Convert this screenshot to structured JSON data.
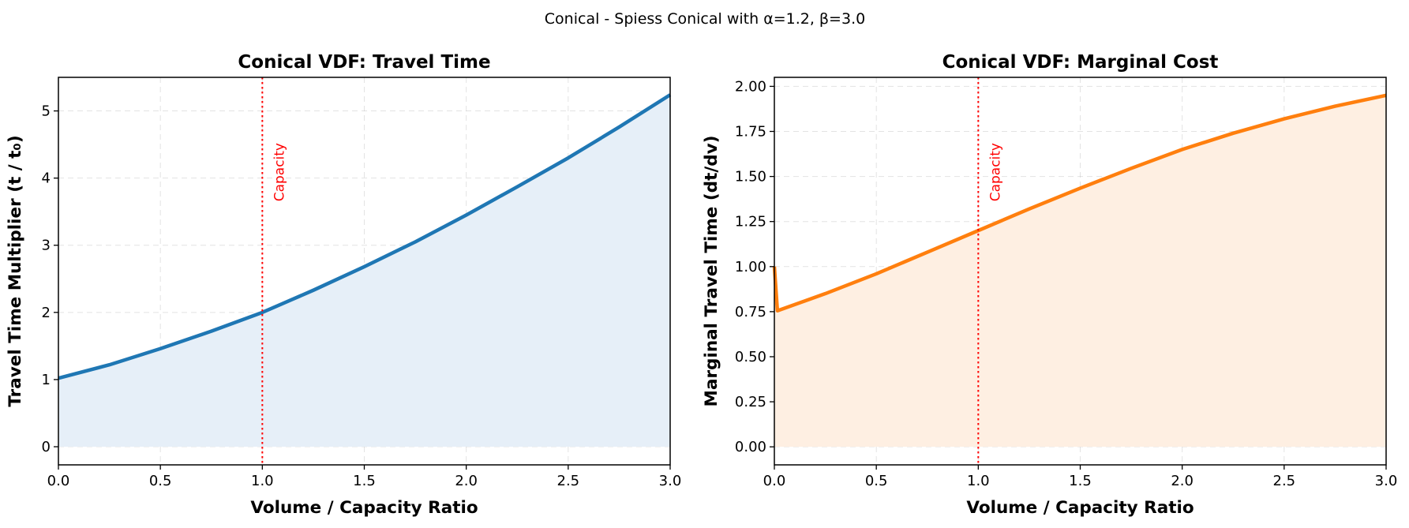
{
  "suptitle": "Conical - Spiess Conical with α=1.2, β=3.0",
  "chart_data": [
    {
      "type": "area",
      "title": "Conical VDF: Travel Time",
      "xlabel": "Volume / Capacity Ratio",
      "ylabel": "Travel Time Multiplier (t / t₀)",
      "xlim": [
        0,
        3.0
      ],
      "ylim": [
        -0.27,
        5.5
      ],
      "xticks": [
        0,
        0.5,
        1.0,
        1.5,
        2.0,
        2.5,
        3.0
      ],
      "xtick_labels": [
        "0.0",
        "0.5",
        "1.0",
        "1.5",
        "2.0",
        "2.5",
        "3.0"
      ],
      "yticks": [
        0,
        1,
        2,
        3,
        4,
        5
      ],
      "ytick_labels": [
        "0",
        "1",
        "2",
        "3",
        "4",
        "5"
      ],
      "grid": true,
      "capacity_line": {
        "x": 1.0,
        "label": "Capacity",
        "color": "#ff0000"
      },
      "series": [
        {
          "name": "Travel Time",
          "color": "#1f77b4",
          "fill": "#e6eff8",
          "x": [
            0,
            0.25,
            0.5,
            0.75,
            1.0,
            1.25,
            1.5,
            1.75,
            2.0,
            2.25,
            2.5,
            2.75,
            3.0
          ],
          "values": [
            1.02,
            1.22,
            1.46,
            1.72,
            2.0,
            2.33,
            2.68,
            3.05,
            3.45,
            3.87,
            4.3,
            4.76,
            5.24
          ]
        }
      ]
    },
    {
      "type": "area",
      "title": "Conical VDF: Marginal Cost",
      "xlabel": "Volume / Capacity Ratio",
      "ylabel": "Marginal Travel Time (dt/dv)",
      "xlim": [
        0,
        3.0
      ],
      "ylim": [
        -0.1,
        2.05
      ],
      "xticks": [
        0,
        0.5,
        1.0,
        1.5,
        2.0,
        2.5,
        3.0
      ],
      "xtick_labels": [
        "0.0",
        "0.5",
        "1.0",
        "1.5",
        "2.0",
        "2.5",
        "3.0"
      ],
      "yticks": [
        0,
        0.25,
        0.5,
        0.75,
        1.0,
        1.25,
        1.5,
        1.75,
        2.0
      ],
      "ytick_labels": [
        "0.00",
        "0.25",
        "0.50",
        "0.75",
        "1.00",
        "1.25",
        "1.50",
        "1.75",
        "2.00"
      ],
      "grid": true,
      "capacity_line": {
        "x": 1.0,
        "label": "Capacity",
        "color": "#ff0000"
      },
      "series": [
        {
          "name": "Marginal Cost",
          "color": "#ff7f0e",
          "fill": "#feefe2",
          "x": [
            0,
            0.015,
            0.25,
            0.5,
            0.75,
            1.0,
            1.25,
            1.5,
            1.75,
            2.0,
            2.25,
            2.5,
            2.75,
            3.0
          ],
          "values": [
            1.0,
            0.755,
            0.85,
            0.96,
            1.08,
            1.2,
            1.32,
            1.435,
            1.545,
            1.65,
            1.74,
            1.82,
            1.89,
            1.95
          ]
        }
      ]
    }
  ]
}
